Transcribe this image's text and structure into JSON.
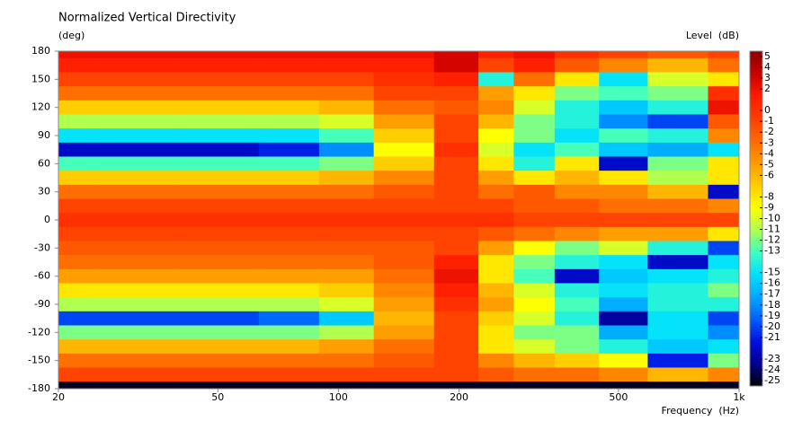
{
  "chart_data": {
    "type": "heatmap",
    "title": "Normalized Vertical Directivity",
    "y_label": "(deg)",
    "x_label": "Frequency  (Hz)",
    "colorbar_label": "Level  (dB)",
    "x_scale": "log",
    "x": [
      20,
      30,
      50,
      80,
      100,
      150,
      200,
      250,
      300,
      400,
      500,
      700,
      1000
    ],
    "y": [
      180,
      165,
      150,
      135,
      120,
      105,
      90,
      75,
      60,
      45,
      30,
      15,
      0,
      -15,
      -30,
      -45,
      -60,
      -75,
      -90,
      -105,
      -120,
      -135,
      -150,
      -165,
      -180
    ],
    "z": [
      [
        2,
        2,
        2,
        2,
        2,
        2,
        3,
        1,
        2,
        0,
        -1,
        -2,
        -1
      ],
      [
        1,
        1,
        1,
        1,
        1,
        1,
        3,
        -1,
        1,
        -2,
        -4,
        -6,
        -3
      ],
      [
        -1,
        -1,
        -1,
        -1,
        -1,
        0,
        1,
        -14,
        -3,
        -8,
        -15,
        -10,
        -8
      ],
      [
        -3,
        -3,
        -3,
        -3,
        -3,
        -1,
        -1,
        -5,
        -8,
        -12,
        -13,
        -12,
        0
      ],
      [
        -7,
        -7,
        -7,
        -7,
        -6,
        -3,
        -2,
        -4,
        -10,
        -14,
        -16,
        -14,
        2
      ],
      [
        -11,
        -11,
        -11,
        -11,
        -10,
        -5,
        -1,
        -6,
        -12,
        -14,
        -18,
        -20,
        -2
      ],
      [
        -15,
        -15,
        -15,
        -15,
        -13,
        -7,
        -1,
        -9,
        -12,
        -15,
        -13,
        -14,
        -4
      ],
      [
        -22,
        -22,
        -22,
        -21,
        -18,
        -9,
        0,
        -10,
        -15,
        -13,
        -16,
        -17,
        -15
      ],
      [
        -13,
        -13,
        -13,
        -13,
        -12,
        -7,
        -1,
        -8,
        -14,
        -8,
        -22,
        -12,
        -8
      ],
      [
        -7,
        -7,
        -7,
        -7,
        -6,
        -4,
        -1,
        -5,
        -8,
        -6,
        -8,
        -11,
        -8
      ],
      [
        -3,
        -3,
        -3,
        -3,
        -3,
        -2,
        -1,
        -3,
        -2,
        -4,
        -4,
        -6,
        -22
      ],
      [
        -1,
        -1,
        -1,
        -1,
        -1,
        -1,
        -1,
        -1,
        -2,
        -2,
        -3,
        -3,
        -4
      ],
      [
        0,
        0,
        0,
        0,
        0,
        0,
        0,
        0,
        -1,
        -1,
        -1,
        -1,
        -1
      ],
      [
        -1,
        -1,
        -1,
        -1,
        -1,
        -1,
        -1,
        -2,
        -3,
        -4,
        -5,
        -5,
        -8
      ],
      [
        -2,
        -2,
        -2,
        -2,
        -2,
        -2,
        -1,
        -5,
        -9,
        -12,
        -10,
        -14,
        -20
      ],
      [
        -3,
        -3,
        -3,
        -3,
        -3,
        -2,
        1,
        -8,
        -12,
        -14,
        -15,
        -22,
        -15
      ],
      [
        -5,
        -5,
        -5,
        -5,
        -5,
        -3,
        2,
        -8,
        -13,
        -22,
        -16,
        -15,
        -14
      ],
      [
        -8,
        -8,
        -8,
        -8,
        -7,
        -4,
        1,
        -6,
        -10,
        -14,
        -15,
        -14,
        -12
      ],
      [
        -11,
        -11,
        -11,
        -11,
        -10,
        -5,
        0,
        -5,
        -9,
        -13,
        -17,
        -14,
        -14
      ],
      [
        -20,
        -20,
        -20,
        -19,
        -16,
        -6,
        -1,
        -7,
        -10,
        -14,
        -23,
        -15,
        -20
      ],
      [
        -12,
        -12,
        -12,
        -12,
        -11,
        -5,
        -1,
        -8,
        -12,
        -12,
        -17,
        -15,
        -18
      ],
      [
        -6,
        -6,
        -6,
        -6,
        -5,
        -3,
        -1,
        -8,
        -10,
        -12,
        -14,
        -16,
        -15
      ],
      [
        -3,
        -3,
        -3,
        -3,
        -3,
        -2,
        -1,
        -4,
        -6,
        -7,
        -9,
        -21,
        -12
      ],
      [
        -1,
        -1,
        -1,
        -1,
        -1,
        -1,
        -1,
        -2,
        -3,
        -3,
        -4,
        -6,
        -4
      ],
      [
        -25,
        -25,
        -25,
        -25,
        -25,
        -25,
        -25,
        -25,
        -25,
        -25,
        -25,
        -25,
        -25
      ]
    ],
    "xlim": [
      20,
      1000
    ],
    "xticks": [
      20,
      50,
      100,
      200,
      500,
      {
        "value": 1000,
        "label": "1k"
      }
    ],
    "ylim": [
      -180,
      180
    ],
    "yticks": [
      180,
      150,
      120,
      90,
      60,
      30,
      0,
      -30,
      -60,
      -90,
      -120,
      -150,
      -180
    ],
    "zlim": [
      -25.5,
      5.5
    ],
    "colorbar_ticks": [
      5,
      4,
      3,
      2,
      0,
      -1,
      -2,
      -3,
      -4,
      -5,
      -6,
      -8,
      -9,
      -10,
      -11,
      -12,
      -13,
      -15,
      -16,
      -17,
      -18,
      -19,
      -20,
      -21,
      -23,
      -24,
      -25
    ],
    "colormap": [
      "#8b0000",
      "#c80000",
      "#ff1a00",
      "#ff3c00",
      "#ff6a00",
      "#ff9a00",
      "#ffcc00",
      "#ffff00",
      "#b0ff50",
      "#40ffc0",
      "#00e0ff",
      "#00a8ff",
      "#0060ff",
      "#0010e0",
      "#000090",
      "#000000"
    ]
  }
}
